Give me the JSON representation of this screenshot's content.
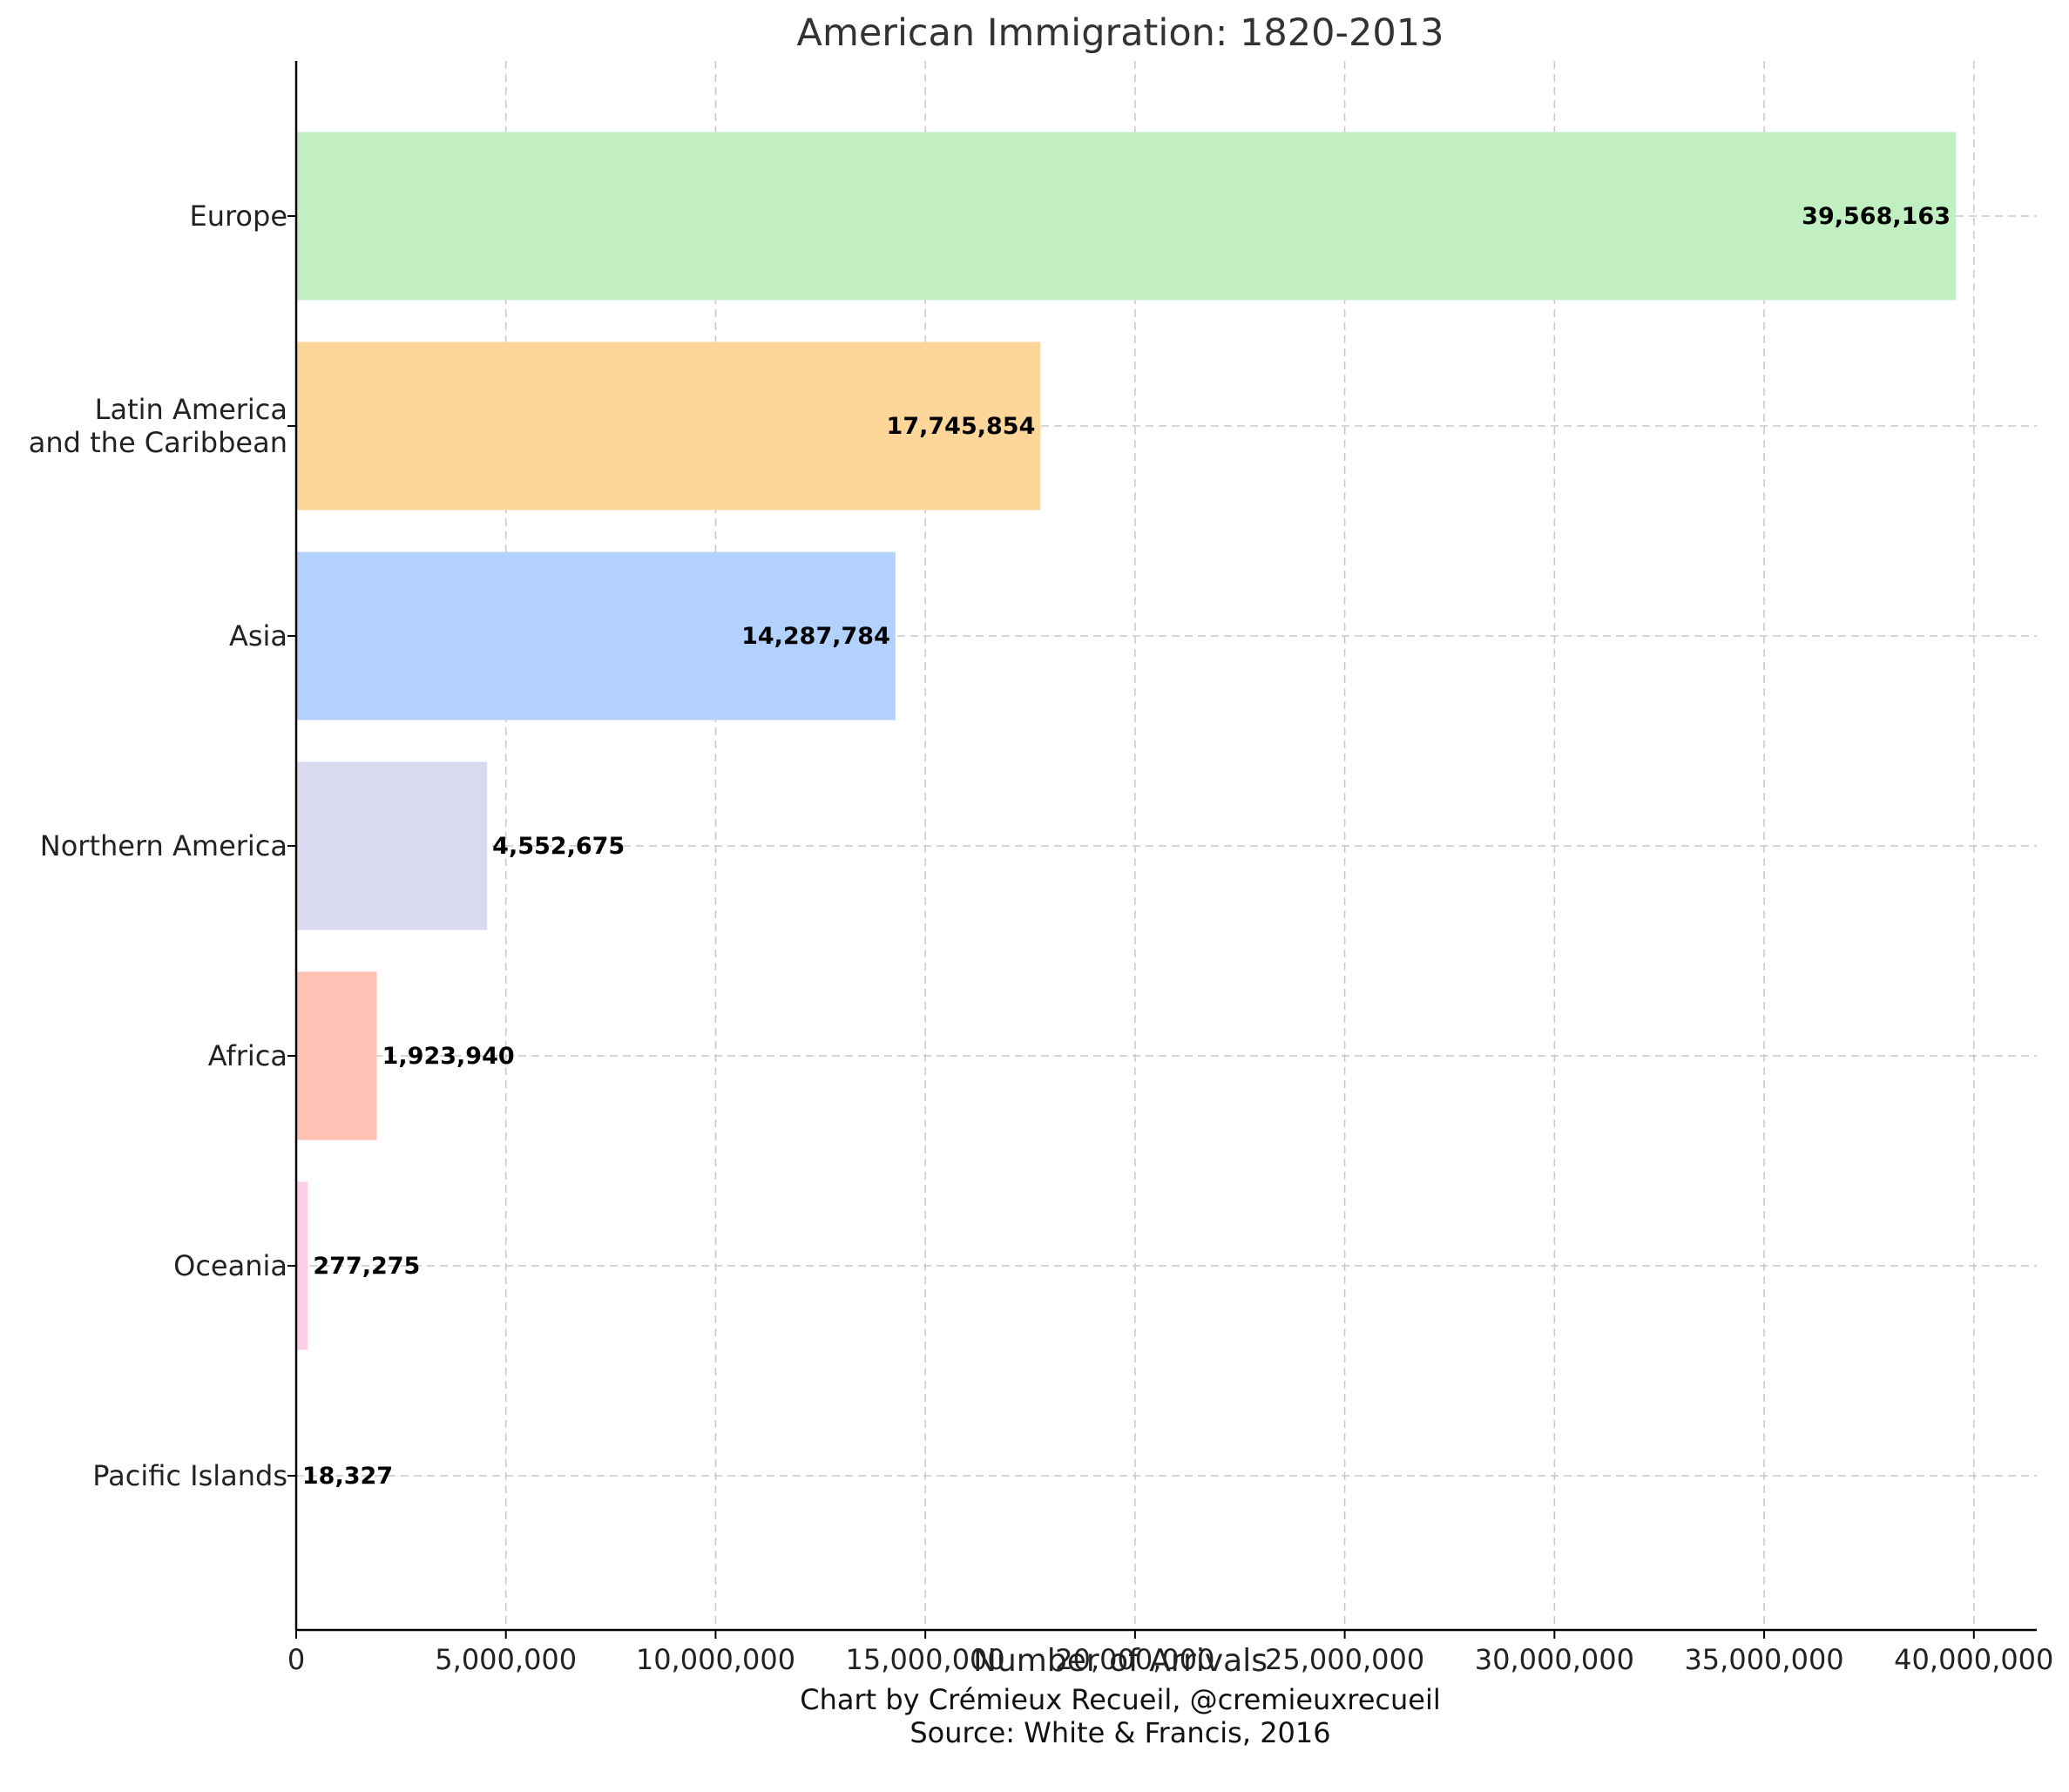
{
  "chart_data": {
    "type": "bar",
    "orientation": "horizontal",
    "title": "American Immigration: 1820-2013",
    "xlabel": "Number of Arrivals",
    "ylabel": "",
    "xlim": [
      0,
      41500000
    ],
    "xticks": [
      0,
      5000000,
      10000000,
      15000000,
      20000000,
      25000000,
      30000000,
      35000000,
      40000000
    ],
    "xtick_labels": [
      "0",
      "5,000,000",
      "10,000,000",
      "15,000,000",
      "20,000,000",
      "25,000,000",
      "30,000,000",
      "35,000,000",
      "40,000,000"
    ],
    "grid": true,
    "categories": [
      [
        "Europe"
      ],
      [
        "Latin America",
        "and the Caribbean"
      ],
      [
        "Asia"
      ],
      [
        "Northern America"
      ],
      [
        "Africa"
      ],
      [
        "Oceania"
      ],
      [
        "Pacific Islands"
      ]
    ],
    "values": [
      39568163,
      17745854,
      14287784,
      4552675,
      1923940,
      277275,
      18327
    ],
    "value_labels": [
      "39,568,163",
      "17,745,854",
      "14,287,784",
      "4,552,675",
      "1,923,940",
      "277,275",
      "18,327"
    ],
    "colors": [
      "#c1efc1",
      "#fdd699",
      "#b3d1fe",
      "#dadaf0",
      "#fdc2b4",
      "#ffcde8",
      "#e6e6e6"
    ]
  },
  "footer": {
    "credit": "Chart by Crémieux Recueil, @cremieuxrecueil",
    "source": "Source: White & Francis, 2016"
  }
}
